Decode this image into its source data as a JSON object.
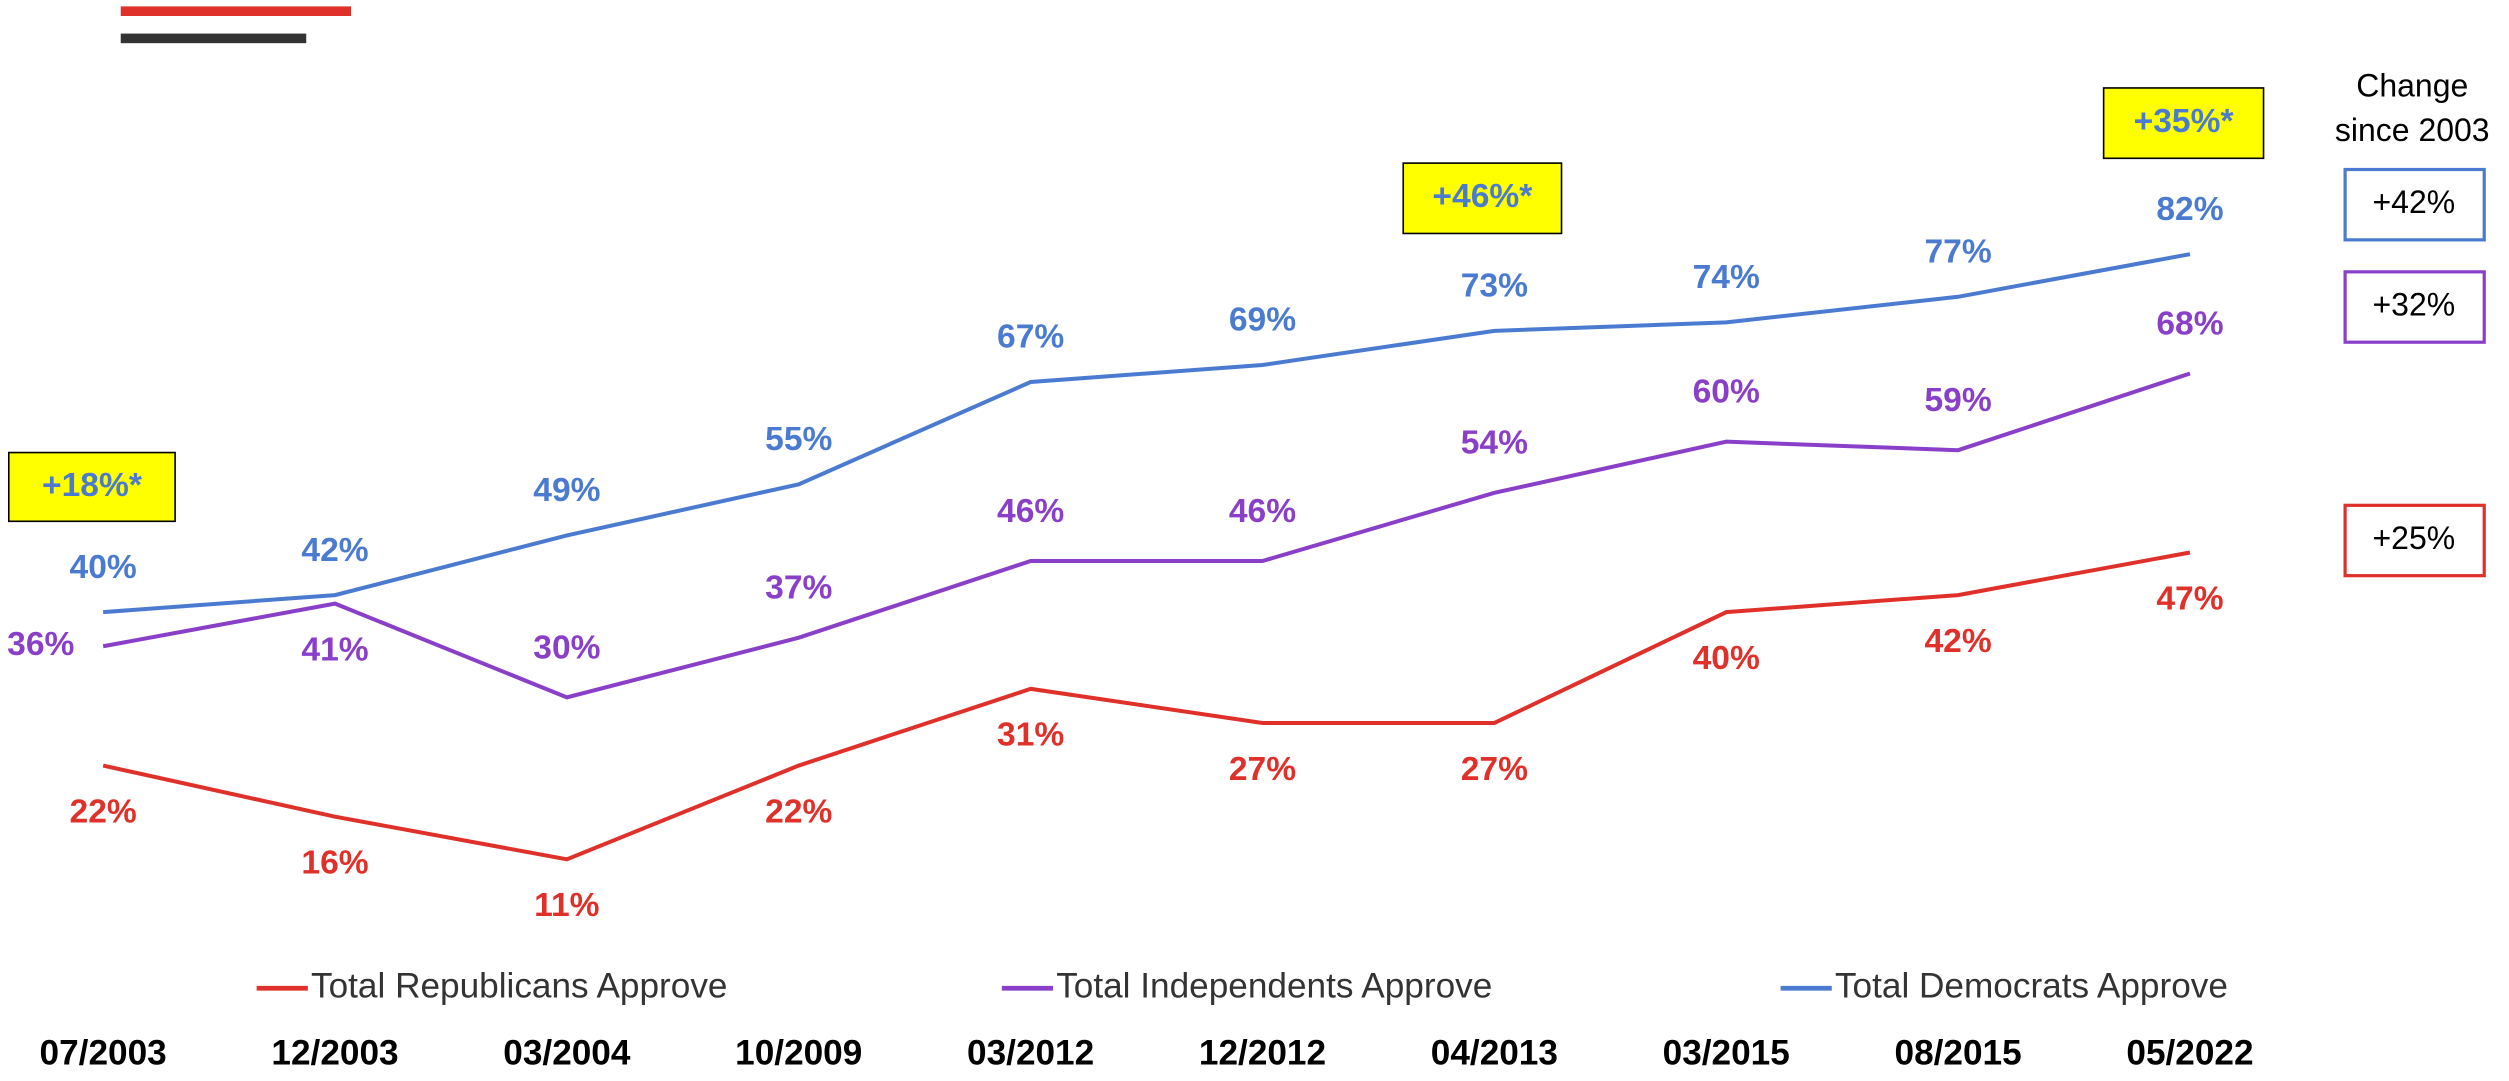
{
  "chart_data": {
    "type": "line",
    "categories": [
      "07/2003",
      "12/2003",
      "03/2004",
      "10/2009",
      "03/2012",
      "12/2012",
      "04/2013",
      "03/2015",
      "08/2015",
      "05/2022"
    ],
    "ylim": [
      0,
      100
    ],
    "series": [
      {
        "name": "Total Republicans Approve",
        "color": "#e0302a",
        "values": [
          22,
          16,
          11,
          22,
          31,
          27,
          27,
          40,
          42,
          47
        ],
        "value_labels": [
          "22%",
          "16%",
          "11%",
          "22%",
          "31%",
          "27%",
          "27%",
          "40%",
          "42%",
          "47%"
        ],
        "change": "+25%"
      },
      {
        "name": "Total Independents Approve",
        "color": "#8a3fc9",
        "values": [
          36,
          41,
          30,
          37,
          46,
          46,
          54,
          60,
          59,
          68
        ],
        "value_labels": [
          "36%",
          "41%",
          "30%",
          "37%",
          "46%",
          "46%",
          "54%",
          "60%",
          "59%",
          "68%"
        ],
        "change": "+32%"
      },
      {
        "name": "Total Democrats Approve",
        "color": "#4a7bd0",
        "values": [
          40,
          42,
          49,
          55,
          67,
          69,
          73,
          74,
          77,
          82
        ],
        "value_labels": [
          "40%",
          "42%",
          "49%",
          "55%",
          "67%",
          "69%",
          "73%",
          "74%",
          "77%",
          "82%"
        ],
        "change": "+42%"
      }
    ],
    "change_title": [
      "Change",
      "since 2003"
    ],
    "annotations": [
      "+18%*",
      "+46%*",
      "+35%*"
    ]
  }
}
